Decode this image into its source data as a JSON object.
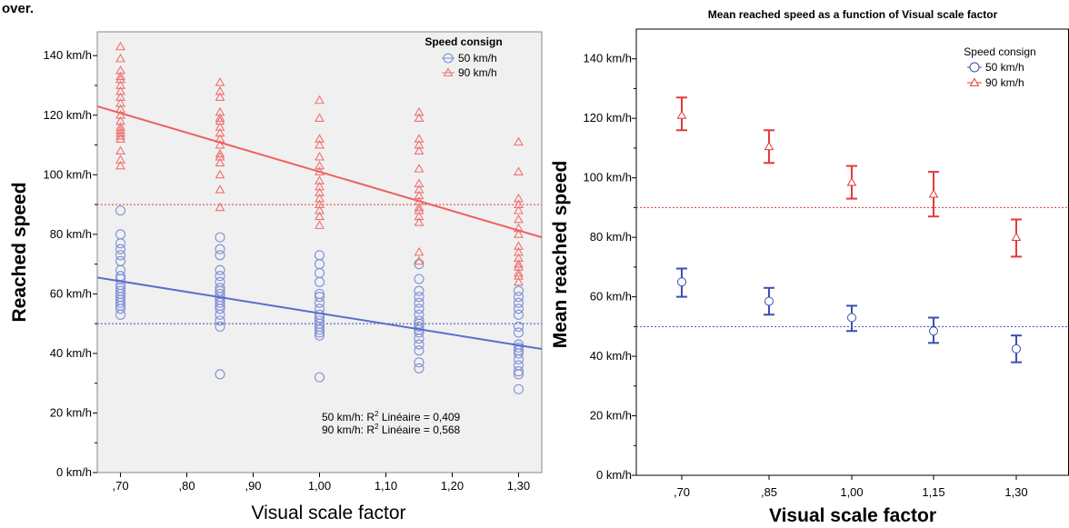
{
  "header_fragment": "over.",
  "colors": {
    "series_50": "#3b4fb0",
    "series_90": "#e33a3a",
    "scatter_50": "#7f8fd6",
    "scatter_90": "#ef7070",
    "plot_bg_left": "#f0f0f0",
    "fit_50": "#5a6ec7",
    "fit_90": "#f0605f"
  },
  "chart_data": [
    {
      "type": "scatter",
      "title": "",
      "xlabel": "Visual scale factor",
      "ylabel": "Reached speed",
      "xlim": [
        0.665,
        1.335
      ],
      "ylim": [
        0,
        148
      ],
      "x_ticks": [
        0.7,
        0.8,
        0.9,
        1.0,
        1.1,
        1.2,
        1.3
      ],
      "x_tick_labels": [
        ",70",
        ",80",
        ",90",
        "1,00",
        "1,10",
        "1,20",
        "1,30"
      ],
      "y_ticks": [
        0,
        20,
        40,
        60,
        80,
        100,
        120,
        140
      ],
      "y_tick_labels": [
        "0 km/h",
        "20 km/h",
        "40 km/h",
        "60 km/h",
        "80 km/h",
        "100 km/h",
        "120 km/h",
        "140 km/h"
      ],
      "legend": {
        "title": "Speed consign",
        "position": "top-right",
        "entries": [
          "50 km/h",
          "90 km/h"
        ]
      },
      "reference_lines": [
        50,
        90
      ],
      "series": [
        {
          "name": "50 km/h",
          "marker": "circle",
          "points": {
            "0.70": [
              53,
              55,
              56,
              57,
              58,
              59,
              60,
              61,
              62,
              63,
              65,
              66,
              68,
              71,
              73,
              75,
              77,
              80,
              88
            ],
            "0.85": [
              33,
              49,
              51,
              53,
              55,
              56,
              57,
              58,
              59,
              60,
              61,
              62,
              64,
              66,
              68,
              73,
              75,
              79
            ],
            "1.00": [
              32,
              46,
              47,
              48,
              49,
              50,
              51,
              52,
              53,
              55,
              57,
              59,
              60,
              64,
              67,
              70,
              73
            ],
            "1.15": [
              35,
              37,
              41,
              43,
              45,
              47,
              48,
              49,
              50,
              51,
              53,
              55,
              57,
              59,
              61,
              65,
              70
            ],
            "1.30": [
              28,
              33,
              34,
              36,
              38,
              40,
              41,
              42,
              43,
              47,
              49,
              53,
              55,
              57,
              59,
              61
            ]
          },
          "fit": {
            "x": [
              0.665,
              1.335
            ],
            "y": [
              65.5,
              41.5
            ]
          }
        },
        {
          "name": "90 km/h",
          "marker": "triangle",
          "points": {
            "0.70": [
              103,
              105,
              108,
              112,
              113,
              114,
              115,
              116,
              118,
              120,
              122,
              124,
              126,
              128,
              130,
              132,
              133,
              135,
              139,
              143
            ],
            "0.85": [
              89,
              95,
              100,
              104,
              106,
              107,
              110,
              112,
              114,
              116,
              118,
              119,
              121,
              126,
              128,
              131
            ],
            "1.00": [
              83,
              86,
              88,
              90,
              92,
              94,
              96,
              98,
              101,
              103,
              106,
              110,
              112,
              119,
              125
            ],
            "1.15": [
              71,
              74,
              84,
              86,
              88,
              89,
              91,
              93,
              95,
              97,
              102,
              108,
              110,
              112,
              119,
              121
            ],
            "1.30": [
              64,
              66,
              67,
              69,
              70,
              72,
              74,
              76,
              80,
              82,
              85,
              88,
              90,
              92,
              101,
              111
            ]
          },
          "fit": {
            "x": [
              0.665,
              1.335
            ],
            "y": [
              123,
              79
            ]
          }
        }
      ],
      "annotations": [
        {
          "series": "50 km/h",
          "prefix": "50 km/h: R",
          "sup": "2",
          "suffix": " Linéaire = 0,409"
        },
        {
          "series": "90 km/h",
          "prefix": "90 km/h: R",
          "sup": "2",
          "suffix": " Linéaire = 0,568"
        }
      ]
    },
    {
      "type": "errorbar",
      "title": "Mean reached speed as a function of Visual scale factor",
      "xlabel": "Visual scale factor",
      "ylabel": "Mean reached speed",
      "categories": [
        ",70",
        ",85",
        "1,00",
        "1,15",
        "1,30"
      ],
      "ylim": [
        0,
        150
      ],
      "y_ticks": [
        0,
        20,
        40,
        60,
        80,
        100,
        120,
        140
      ],
      "y_tick_labels": [
        "0 km/h",
        "20 km/h",
        "40 km/h",
        "60 km/h",
        "80 km/h",
        "100 km/h",
        "120 km/h",
        "140 km/h"
      ],
      "legend": {
        "title": "Speed consign",
        "position": "top-right",
        "entries": [
          "50 km/h",
          "90 km/h"
        ]
      },
      "reference_lines": [
        50,
        90
      ],
      "series": [
        {
          "name": "50 km/h",
          "marker": "circle",
          "mean": [
            65,
            58.5,
            53,
            48.5,
            42.5
          ],
          "lower": [
            60,
            54,
            48.5,
            44.5,
            38
          ],
          "upper": [
            69.5,
            63,
            57,
            53,
            47
          ]
        },
        {
          "name": "90 km/h",
          "marker": "triangle",
          "mean": [
            121,
            110.5,
            98.5,
            94.5,
            80
          ],
          "lower": [
            116,
            105,
            93,
            87,
            73.5
          ],
          "upper": [
            127,
            116,
            104,
            102,
            86
          ]
        }
      ]
    }
  ]
}
